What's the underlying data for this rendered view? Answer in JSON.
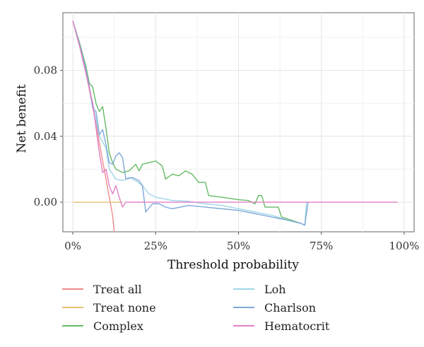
{
  "chart_data": {
    "type": "line",
    "title": "",
    "xlabel": "Threshold probability",
    "ylabel": "Net benefit",
    "xlim": [
      -0.03,
      1.03
    ],
    "ylim": [
      -0.018,
      0.115
    ],
    "x_ticks": [
      0,
      0.25,
      0.5,
      0.75,
      1.0
    ],
    "x_tick_labels": [
      "0%",
      "25%",
      "50%",
      "75%",
      "100%"
    ],
    "y_ticks": [
      0,
      0.04,
      0.08
    ],
    "y_tick_labels": [
      "0.00",
      "0.04",
      "0.08"
    ],
    "grid": true,
    "legend_position": "bottom",
    "series": [
      {
        "name": "Treat all",
        "color": "#f08a8a",
        "points": [
          [
            0,
            0.11
          ],
          [
            0.02,
            0.095
          ],
          [
            0.04,
            0.078
          ],
          [
            0.06,
            0.058
          ],
          [
            0.08,
            0.036
          ],
          [
            0.1,
            0.014
          ],
          [
            0.12,
            -0.008
          ],
          [
            0.125,
            -0.018
          ]
        ]
      },
      {
        "name": "Treat none",
        "color": "#e6c070",
        "points": [
          [
            0,
            0.0
          ],
          [
            0.15,
            0.0
          ]
        ]
      },
      {
        "name": "Complex",
        "color": "#66bb66",
        "points": [
          [
            0,
            0.11
          ],
          [
            0.02,
            0.097
          ],
          [
            0.04,
            0.082
          ],
          [
            0.05,
            0.072
          ],
          [
            0.06,
            0.07
          ],
          [
            0.07,
            0.06
          ],
          [
            0.08,
            0.055
          ],
          [
            0.09,
            0.058
          ],
          [
            0.1,
            0.045
          ],
          [
            0.11,
            0.03
          ],
          [
            0.12,
            0.024
          ],
          [
            0.13,
            0.02
          ],
          [
            0.15,
            0.018
          ],
          [
            0.17,
            0.019
          ],
          [
            0.19,
            0.023
          ],
          [
            0.2,
            0.019
          ],
          [
            0.21,
            0.023
          ],
          [
            0.23,
            0.024
          ],
          [
            0.25,
            0.025
          ],
          [
            0.27,
            0.022
          ],
          [
            0.28,
            0.014
          ],
          [
            0.3,
            0.017
          ],
          [
            0.32,
            0.016
          ],
          [
            0.34,
            0.019
          ],
          [
            0.36,
            0.017
          ],
          [
            0.38,
            0.012
          ],
          [
            0.4,
            0.012
          ],
          [
            0.41,
            0.004
          ],
          [
            0.45,
            0.003
          ],
          [
            0.5,
            0.0015
          ],
          [
            0.53,
            0.001
          ],
          [
            0.55,
            -0.001
          ],
          [
            0.56,
            0.004
          ],
          [
            0.57,
            0.004
          ],
          [
            0.58,
            -0.003
          ],
          [
            0.62,
            -0.003
          ],
          [
            0.63,
            -0.009
          ],
          [
            0.66,
            -0.011
          ],
          [
            0.69,
            -0.013
          ],
          [
            0.7,
            -0.014
          ]
        ]
      },
      {
        "name": "Loh",
        "color": "#9fd5e8",
        "points": [
          [
            0,
            0.11
          ],
          [
            0.02,
            0.095
          ],
          [
            0.04,
            0.078
          ],
          [
            0.06,
            0.06
          ],
          [
            0.07,
            0.05
          ],
          [
            0.08,
            0.04
          ],
          [
            0.1,
            0.033
          ],
          [
            0.11,
            0.02
          ],
          [
            0.13,
            0.014
          ],
          [
            0.15,
            0.013
          ],
          [
            0.17,
            0.015
          ],
          [
            0.19,
            0.013
          ],
          [
            0.21,
            0.01
          ],
          [
            0.23,
            0.005
          ],
          [
            0.25,
            0.003
          ],
          [
            0.3,
            0.001
          ],
          [
            0.35,
            0.0005
          ],
          [
            0.4,
            -0.001
          ],
          [
            0.45,
            -0.002
          ],
          [
            0.5,
            -0.004
          ],
          [
            0.55,
            -0.006
          ],
          [
            0.6,
            -0.008
          ],
          [
            0.65,
            -0.011
          ],
          [
            0.69,
            -0.013
          ],
          [
            0.7,
            -0.014
          ],
          [
            0.705,
            0.0
          ]
        ]
      },
      {
        "name": "Charlson",
        "color": "#7fa8d8",
        "points": [
          [
            0,
            0.11
          ],
          [
            0.02,
            0.096
          ],
          [
            0.04,
            0.08
          ],
          [
            0.05,
            0.07
          ],
          [
            0.06,
            0.057
          ],
          [
            0.07,
            0.055
          ],
          [
            0.08,
            0.041
          ],
          [
            0.09,
            0.044
          ],
          [
            0.1,
            0.035
          ],
          [
            0.11,
            0.024
          ],
          [
            0.12,
            0.023
          ],
          [
            0.13,
            0.028
          ],
          [
            0.14,
            0.03
          ],
          [
            0.15,
            0.027
          ],
          [
            0.16,
            0.014
          ],
          [
            0.18,
            0.015
          ],
          [
            0.2,
            0.013
          ],
          [
            0.21,
            0.01
          ],
          [
            0.22,
            -0.006
          ],
          [
            0.24,
            -0.001
          ],
          [
            0.26,
            -0.001
          ],
          [
            0.28,
            -0.003
          ],
          [
            0.3,
            -0.004
          ],
          [
            0.35,
            -0.002
          ],
          [
            0.4,
            -0.003
          ],
          [
            0.45,
            -0.004
          ],
          [
            0.5,
            -0.005
          ],
          [
            0.55,
            -0.007
          ],
          [
            0.6,
            -0.009
          ],
          [
            0.65,
            -0.011
          ],
          [
            0.69,
            -0.013
          ],
          [
            0.7,
            -0.014
          ],
          [
            0.71,
            0.0
          ]
        ]
      },
      {
        "name": "Hematocrit",
        "color": "#e27fc7",
        "points": [
          [
            0,
            0.11
          ],
          [
            0.02,
            0.095
          ],
          [
            0.04,
            0.078
          ],
          [
            0.06,
            0.06
          ],
          [
            0.07,
            0.045
          ],
          [
            0.08,
            0.03
          ],
          [
            0.09,
            0.018
          ],
          [
            0.1,
            0.02
          ],
          [
            0.11,
            0.01
          ],
          [
            0.12,
            0.005
          ],
          [
            0.13,
            0.01
          ],
          [
            0.14,
            0.003
          ],
          [
            0.15,
            -0.003
          ],
          [
            0.16,
            0.0
          ],
          [
            0.2,
            0.0
          ],
          [
            0.4,
            0.0
          ],
          [
            0.6,
            0.0
          ],
          [
            0.8,
            0.0
          ],
          [
            0.98,
            0.0
          ]
        ]
      }
    ]
  }
}
